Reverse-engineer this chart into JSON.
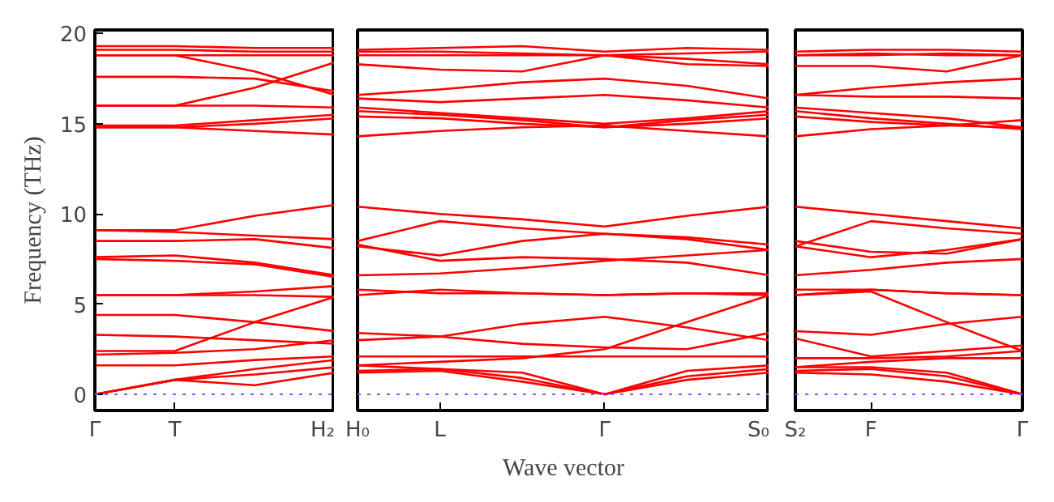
{
  "chart_data": [
    {
      "type": "line",
      "ylabel": "Frequency (THz)",
      "categories": [
        "Γ",
        "T",
        null,
        "H₂"
      ],
      "ylim": [
        -0.9,
        20.2
      ],
      "yticks": [
        0,
        5,
        10,
        15,
        20
      ],
      "grid": false,
      "ref_lines": [
        {
          "axis": "y",
          "value": 0,
          "color": "#6666ff",
          "line_style": "dotted"
        }
      ],
      "series": [
        {
          "color": "#ff0000",
          "values": [
            19.3,
            19.3,
            19.2,
            19.2
          ]
        },
        {
          "color": "#ff0000",
          "values": [
            19.1,
            19.1,
            19.0,
            19.0
          ]
        },
        {
          "color": "#ff0000",
          "values": [
            18.8,
            18.8,
            18.8,
            18.8
          ]
        },
        {
          "color": "#ff0000",
          "values": [
            18.8,
            18.8,
            17.9,
            16.6
          ]
        },
        {
          "color": "#ff0000",
          "values": [
            17.6,
            17.6,
            17.5,
            16.8
          ]
        },
        {
          "color": "#ff0000",
          "values": [
            16.0,
            16.0,
            17.0,
            18.4
          ]
        },
        {
          "color": "#ff0000",
          "values": [
            16.0,
            16.0,
            16.0,
            15.9
          ]
        },
        {
          "color": "#ff0000",
          "values": [
            14.9,
            14.9,
            15.2,
            15.5
          ]
        },
        {
          "color": "#ff0000",
          "values": [
            14.8,
            14.8,
            15.0,
            15.3
          ]
        },
        {
          "color": "#ff0000",
          "values": [
            14.8,
            14.8,
            14.6,
            14.4
          ]
        },
        {
          "color": "#ff0000",
          "values": [
            9.1,
            9.1,
            9.9,
            10.5
          ]
        },
        {
          "color": "#ff0000",
          "values": [
            9.1,
            9.0,
            8.8,
            8.6
          ]
        },
        {
          "color": "#ff0000",
          "values": [
            8.5,
            8.5,
            8.6,
            8.1
          ]
        },
        {
          "color": "#ff0000",
          "values": [
            7.6,
            7.7,
            7.3,
            6.6
          ]
        },
        {
          "color": "#ff0000",
          "values": [
            7.5,
            7.4,
            7.2,
            6.5
          ]
        },
        {
          "color": "#ff0000",
          "values": [
            5.5,
            5.5,
            5.7,
            6.0
          ]
        },
        {
          "color": "#ff0000",
          "values": [
            5.5,
            5.5,
            5.5,
            5.4
          ]
        },
        {
          "color": "#ff0000",
          "values": [
            4.4,
            4.4,
            4.0,
            3.5
          ]
        },
        {
          "color": "#ff0000",
          "values": [
            3.3,
            3.2,
            3.0,
            2.8
          ]
        },
        {
          "color": "#ff0000",
          "values": [
            2.4,
            2.4,
            4.0,
            5.4
          ]
        },
        {
          "color": "#ff0000",
          "values": [
            2.2,
            2.3,
            2.5,
            3.0
          ]
        },
        {
          "color": "#ff0000",
          "values": [
            1.6,
            1.6,
            1.9,
            2.1
          ]
        },
        {
          "color": "#ff0000",
          "values": [
            0,
            0.8,
            1.4,
            1.9
          ]
        },
        {
          "color": "#ff0000",
          "values": [
            0,
            0.8,
            1.1,
            1.5
          ]
        },
        {
          "color": "#ff0000",
          "values": [
            0,
            0.8,
            0.5,
            1.2
          ]
        }
      ]
    },
    {
      "type": "line",
      "xlabel": "Wave vector",
      "categories": [
        "H₀",
        "L",
        null,
        "Γ",
        null,
        "S₀"
      ],
      "ylim": [
        -0.9,
        20.2
      ],
      "yticks": [
        0,
        5,
        10,
        15,
        20
      ],
      "tick_labels": "x",
      "grid": false,
      "ref_lines": [
        {
          "axis": "y",
          "value": 0,
          "color": "#6666ff",
          "line_style": "dotted"
        }
      ],
      "series": [
        {
          "color": "#ff0000",
          "values": [
            19.1,
            19.2,
            19.3,
            19.0,
            19.2,
            19.1
          ]
        },
        {
          "color": "#ff0000",
          "values": [
            19.0,
            19.0,
            18.9,
            18.8,
            18.9,
            19.0
          ]
        },
        {
          "color": "#ff0000",
          "values": [
            18.8,
            18.8,
            18.8,
            18.8,
            18.6,
            18.3
          ]
        },
        {
          "color": "#ff0000",
          "values": [
            18.3,
            18.0,
            17.9,
            18.8,
            18.3,
            18.2
          ]
        },
        {
          "color": "#ff0000",
          "values": [
            16.6,
            16.9,
            17.3,
            17.5,
            17.1,
            16.4
          ]
        },
        {
          "color": "#ff0000",
          "values": [
            16.4,
            16.2,
            16.4,
            16.6,
            16.3,
            15.9
          ]
        },
        {
          "color": "#ff0000",
          "values": [
            15.9,
            15.6,
            15.3,
            15.0,
            15.3,
            15.7
          ]
        },
        {
          "color": "#ff0000",
          "values": [
            15.7,
            15.5,
            15.2,
            14.8,
            15.2,
            15.5
          ]
        },
        {
          "color": "#ff0000",
          "values": [
            15.4,
            15.3,
            15.0,
            14.8,
            15.0,
            15.3
          ]
        },
        {
          "color": "#ff0000",
          "values": [
            14.3,
            14.6,
            14.8,
            14.9,
            14.6,
            14.3
          ]
        },
        {
          "color": "#ff0000",
          "values": [
            10.4,
            10.0,
            9.7,
            9.3,
            9.9,
            10.4
          ]
        },
        {
          "color": "#ff0000",
          "values": [
            8.5,
            9.6,
            9.2,
            8.9,
            8.7,
            8.3
          ]
        },
        {
          "color": "#ff0000",
          "values": [
            8.2,
            7.7,
            8.5,
            8.9,
            8.6,
            8.0
          ]
        },
        {
          "color": "#ff0000",
          "values": [
            8.3,
            7.4,
            7.6,
            7.5,
            7.3,
            6.6
          ]
        },
        {
          "color": "#ff0000",
          "values": [
            6.6,
            6.7,
            7.0,
            7.4,
            7.7,
            8.0
          ]
        },
        {
          "color": "#ff0000",
          "values": [
            5.8,
            5.6,
            5.6,
            5.5,
            5.6,
            5.6
          ]
        },
        {
          "color": "#ff0000",
          "values": [
            5.5,
            5.8,
            5.6,
            5.5,
            5.6,
            5.5
          ]
        },
        {
          "color": "#ff0000",
          "values": [
            3.4,
            3.2,
            3.9,
            4.3,
            3.7,
            3.0
          ]
        },
        {
          "color": "#ff0000",
          "values": [
            3.0,
            3.2,
            2.8,
            2.6,
            2.5,
            3.4
          ]
        },
        {
          "color": "#ff0000",
          "values": [
            2.1,
            2.1,
            2.1,
            2.1,
            2.1,
            2.1
          ]
        },
        {
          "color": "#ff0000",
          "values": [
            1.6,
            1.8,
            2.0,
            2.5,
            4.0,
            5.5
          ]
        },
        {
          "color": "#ff0000",
          "values": [
            1.3,
            1.4,
            0.9,
            0,
            1.0,
            1.4
          ]
        },
        {
          "color": "#ff0000",
          "values": [
            1.2,
            1.3,
            0.7,
            0,
            0.8,
            1.2
          ]
        },
        {
          "color": "#ff0000",
          "values": [
            1.6,
            1.4,
            1.2,
            0,
            1.3,
            1.6
          ]
        }
      ]
    },
    {
      "type": "line",
      "categories": [
        "S₂",
        "F",
        null,
        "Γ"
      ],
      "ylim": [
        -0.9,
        20.2
      ],
      "yticks": [
        0,
        5,
        10,
        15,
        20
      ],
      "tick_labels": "x",
      "grid": false,
      "ref_lines": [
        {
          "axis": "y",
          "value": 0,
          "color": "#6666ff",
          "line_style": "dotted"
        }
      ],
      "series": [
        {
          "color": "#ff0000",
          "values": [
            19.0,
            19.1,
            19.1,
            19.0
          ]
        },
        {
          "color": "#ff0000",
          "values": [
            18.8,
            18.8,
            18.9,
            18.8
          ]
        },
        {
          "color": "#ff0000",
          "values": [
            18.8,
            18.9,
            18.8,
            18.8
          ]
        },
        {
          "color": "#ff0000",
          "values": [
            18.2,
            18.2,
            17.9,
            18.8
          ]
        },
        {
          "color": "#ff0000",
          "values": [
            16.6,
            17.0,
            17.3,
            17.5
          ]
        },
        {
          "color": "#ff0000",
          "values": [
            16.6,
            16.5,
            16.5,
            16.4
          ]
        },
        {
          "color": "#ff0000",
          "values": [
            15.9,
            15.6,
            15.3,
            14.8
          ]
        },
        {
          "color": "#ff0000",
          "values": [
            15.7,
            15.3,
            15.0,
            14.7
          ]
        },
        {
          "color": "#ff0000",
          "values": [
            15.4,
            15.1,
            14.9,
            14.8
          ]
        },
        {
          "color": "#ff0000",
          "values": [
            14.3,
            14.7,
            14.9,
            15.2
          ]
        },
        {
          "color": "#ff0000",
          "values": [
            10.4,
            10.0,
            9.6,
            9.2
          ]
        },
        {
          "color": "#ff0000",
          "values": [
            8.2,
            9.6,
            9.2,
            8.9
          ]
        },
        {
          "color": "#ff0000",
          "values": [
            8.5,
            7.9,
            7.8,
            8.6
          ]
        },
        {
          "color": "#ff0000",
          "values": [
            8.2,
            7.6,
            8.0,
            8.6
          ]
        },
        {
          "color": "#ff0000",
          "values": [
            6.6,
            6.9,
            7.3,
            7.5
          ]
        },
        {
          "color": "#ff0000",
          "values": [
            5.8,
            5.8,
            5.6,
            5.5
          ]
        },
        {
          "color": "#ff0000",
          "values": [
            5.5,
            5.8,
            5.6,
            5.5
          ]
        },
        {
          "color": "#ff0000",
          "values": [
            3.5,
            3.3,
            3.9,
            4.3
          ]
        },
        {
          "color": "#ff0000",
          "values": [
            3.1,
            2.1,
            2.4,
            2.7
          ]
        },
        {
          "color": "#ff0000",
          "values": [
            5.5,
            5.7,
            4.0,
            2.4
          ]
        },
        {
          "color": "#ff0000",
          "values": [
            2.0,
            2.0,
            2.1,
            2.4
          ]
        },
        {
          "color": "#ff0000",
          "values": [
            1.5,
            1.8,
            2.0,
            2.0
          ]
        },
        {
          "color": "#ff0000",
          "values": [
            1.3,
            1.4,
            1.0,
            0
          ]
        },
        {
          "color": "#ff0000",
          "values": [
            1.2,
            1.1,
            0.7,
            0
          ]
        },
        {
          "color": "#ff0000",
          "values": [
            1.5,
            1.5,
            1.2,
            0
          ]
        }
      ]
    }
  ]
}
